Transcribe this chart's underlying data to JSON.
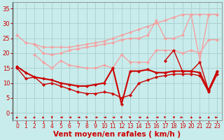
{
  "x": [
    0,
    1,
    2,
    3,
    4,
    5,
    6,
    7,
    8,
    9,
    10,
    11,
    12,
    13,
    14,
    15,
    16,
    17,
    18,
    19,
    20,
    21,
    22,
    23
  ],
  "background_color": "#c8ecec",
  "grid_color": "#a8cece",
  "xlabel": "Vent moyen/en rafales ( km/h )",
  "xlabel_color": "#cc0000",
  "xlabel_fontsize": 7.5,
  "tick_color": "#cc0000",
  "yticks": [
    0,
    5,
    10,
    15,
    20,
    25,
    30,
    35
  ],
  "ylim": [
    -2.5,
    37
  ],
  "xlim": [
    -0.5,
    23.5
  ],
  "light_series": [
    [
      26,
      23.5,
      23,
      22,
      22,
      22,
      22,
      22.5,
      23,
      23.5,
      24,
      25,
      26,
      27,
      28,
      29,
      30,
      31,
      32,
      33,
      33,
      33,
      33,
      33
    ],
    [
      null,
      null,
      23,
      20,
      19.5,
      20,
      21,
      21.5,
      22,
      22.5,
      23,
      23.5,
      24.5,
      25,
      25,
      26,
      31,
      25,
      25,
      26,
      33,
      17.5,
      33,
      33
    ],
    [
      null,
      null,
      19.5,
      17,
      15,
      17.5,
      16,
      15.5,
      15,
      15,
      16,
      15,
      19.5,
      17,
      17,
      17,
      21,
      21,
      21,
      20,
      21,
      20,
      24.5,
      24.5
    ]
  ],
  "light_color": "#f4a0a0",
  "light_lw": 1.0,
  "light_ms": 2.5,
  "dark_series": [
    [
      15.5,
      13.5,
      12,
      11.5,
      11,
      10,
      9.5,
      9,
      9,
      9.5,
      10,
      15,
      3,
      14,
      14,
      14.5,
      13.5,
      13.5,
      14,
      14,
      14,
      13.5,
      7.5,
      14
    ],
    [
      15,
      11.5,
      12,
      9.5,
      10,
      9,
      8,
      7,
      6.5,
      6.5,
      7,
      6.5,
      5,
      6,
      10,
      11,
      12,
      12.5,
      13,
      13,
      13,
      12.5,
      7,
      13
    ],
    [
      null,
      null,
      null,
      null,
      null,
      null,
      null,
      null,
      null,
      null,
      null,
      null,
      null,
      null,
      null,
      null,
      null,
      17.5,
      21,
      14,
      14,
      17,
      7.5,
      14
    ]
  ],
  "dark_color_main": "#cc0000",
  "dark_lw_main": 1.5,
  "dark_lw_sub": 1.0,
  "dark_ms": 2.5,
  "wind_directions": [
    225,
    225,
    225,
    225,
    180,
    270,
    270,
    270,
    315,
    270,
    270,
    270,
    315,
    315,
    270,
    225,
    270,
    315,
    45,
    90,
    135,
    135,
    135,
    90
  ]
}
